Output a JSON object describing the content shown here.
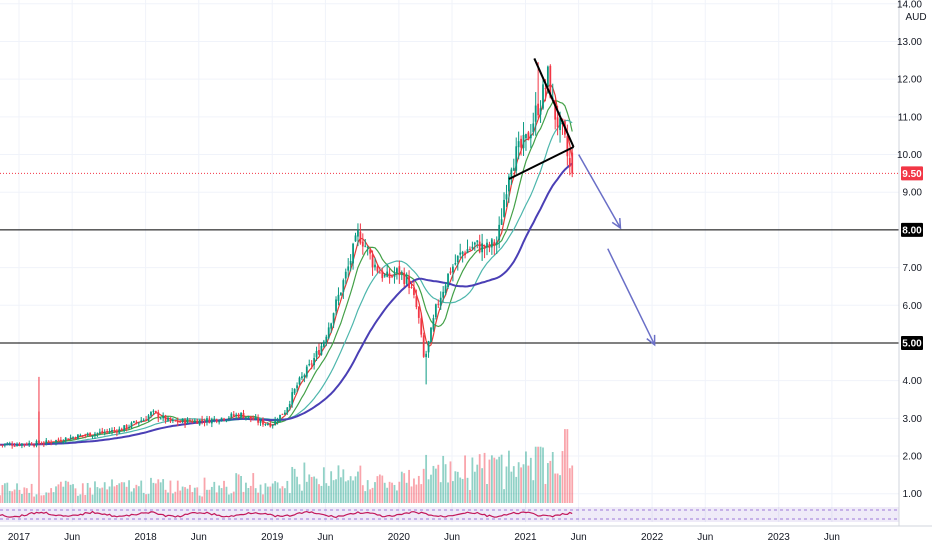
{
  "chart_data": {
    "type": "candlestick",
    "currency": "AUD",
    "y_axis": {
      "ylim": [
        0.7,
        14.1
      ],
      "ticks": [
        "1.00",
        "2.00",
        "3.00",
        "4.00",
        "5.00",
        "6.00",
        "7.00",
        "8.00",
        "9.00",
        "10.00",
        "11.00",
        "12.00",
        "13.00",
        "14.00"
      ]
    },
    "x_axis": {
      "ticks": [
        {
          "label": "2017",
          "t": 2017.0
        },
        {
          "label": "Jun",
          "t": 2017.42
        },
        {
          "label": "2018",
          "t": 2018.0
        },
        {
          "label": "Jun",
          "t": 2018.42
        },
        {
          "label": "2019",
          "t": 2019.0
        },
        {
          "label": "Jun",
          "t": 2019.42
        },
        {
          "label": "2020",
          "t": 2020.0
        },
        {
          "label": "Jun",
          "t": 2020.42
        },
        {
          "label": "2021",
          "t": 2021.0
        },
        {
          "label": "Jun",
          "t": 2021.42
        },
        {
          "label": "2022",
          "t": 2022.0
        },
        {
          "label": "Jun",
          "t": 2022.42
        },
        {
          "label": "2023",
          "t": 2023.0
        },
        {
          "label": "Jun",
          "t": 2023.42
        }
      ],
      "xlim": [
        2016.85,
        2023.95
      ]
    },
    "last_price": {
      "value": 9.5,
      "label": "9.50",
      "color": "#f23645"
    },
    "levels": [
      {
        "value": 8.0,
        "label": "8.00",
        "color": "#000000"
      },
      {
        "value": 5.0,
        "label": "5.00",
        "color": "#000000"
      }
    ],
    "price_key_points": [
      [
        2016.85,
        2.3
      ],
      [
        2017.2,
        2.35
      ],
      [
        2017.5,
        2.55
      ],
      [
        2017.8,
        2.7
      ],
      [
        2018.0,
        3.0
      ],
      [
        2018.05,
        3.15
      ],
      [
        2018.2,
        2.9
      ],
      [
        2018.5,
        2.95
      ],
      [
        2018.75,
        3.1
      ],
      [
        2018.9,
        2.9
      ],
      [
        2019.0,
        2.85
      ],
      [
        2019.1,
        3.2
      ],
      [
        2019.2,
        3.9
      ],
      [
        2019.3,
        4.4
      ],
      [
        2019.4,
        5.0
      ],
      [
        2019.5,
        6.0
      ],
      [
        2019.6,
        7.0
      ],
      [
        2019.68,
        7.9
      ],
      [
        2019.72,
        7.7
      ],
      [
        2019.8,
        7.1
      ],
      [
        2019.9,
        6.7
      ],
      [
        2020.0,
        6.9
      ],
      [
        2020.08,
        6.6
      ],
      [
        2020.15,
        5.8
      ],
      [
        2020.2,
        4.5
      ],
      [
        2020.25,
        5.2
      ],
      [
        2020.3,
        6.0
      ],
      [
        2020.4,
        6.9
      ],
      [
        2020.5,
        7.4
      ],
      [
        2020.6,
        7.6
      ],
      [
        2020.7,
        7.5
      ],
      [
        2020.78,
        7.7
      ],
      [
        2020.82,
        8.6
      ],
      [
        2020.88,
        9.8
      ],
      [
        2020.95,
        10.1
      ],
      [
        2021.0,
        10.3
      ],
      [
        2021.05,
        10.8
      ],
      [
        2021.1,
        11.3
      ],
      [
        2021.15,
        11.7
      ],
      [
        2021.18,
        12.1
      ],
      [
        2021.22,
        11.2
      ],
      [
        2021.27,
        10.7
      ],
      [
        2021.3,
        10.5
      ],
      [
        2021.35,
        9.6
      ],
      [
        2021.37,
        9.5
      ]
    ],
    "series": [
      {
        "name": "",
        "style": "candles",
        "up_color": "#089981",
        "down_color": "#f23645"
      },
      {
        "name": "",
        "style": "line",
        "smoothing": 4,
        "color": "#e53935"
      },
      {
        "name": "",
        "style": "line",
        "smoothing": 10,
        "color": "#43a047"
      },
      {
        "name": "",
        "style": "line",
        "smoothing": 22,
        "color": "#4db6ac"
      },
      {
        "name": "",
        "style": "line",
        "smoothing": 40,
        "color": "#4a3fb5"
      }
    ],
    "annotations": {
      "triangle": {
        "upper": [
          [
            2021.07,
            12.55
          ],
          [
            2021.38,
            10.2
          ]
        ],
        "lower": [
          [
            2020.87,
            9.35
          ],
          [
            2021.38,
            10.2
          ]
        ]
      },
      "arrows": [
        {
          "from": [
            2021.42,
            10.0
          ],
          "to": [
            2021.75,
            8.05
          ]
        },
        {
          "from": [
            2021.65,
            7.5
          ],
          "to": [
            2022.02,
            4.95
          ]
        }
      ]
    },
    "panels": [
      "price",
      "volume",
      "oscillator"
    ],
    "grid": true
  }
}
